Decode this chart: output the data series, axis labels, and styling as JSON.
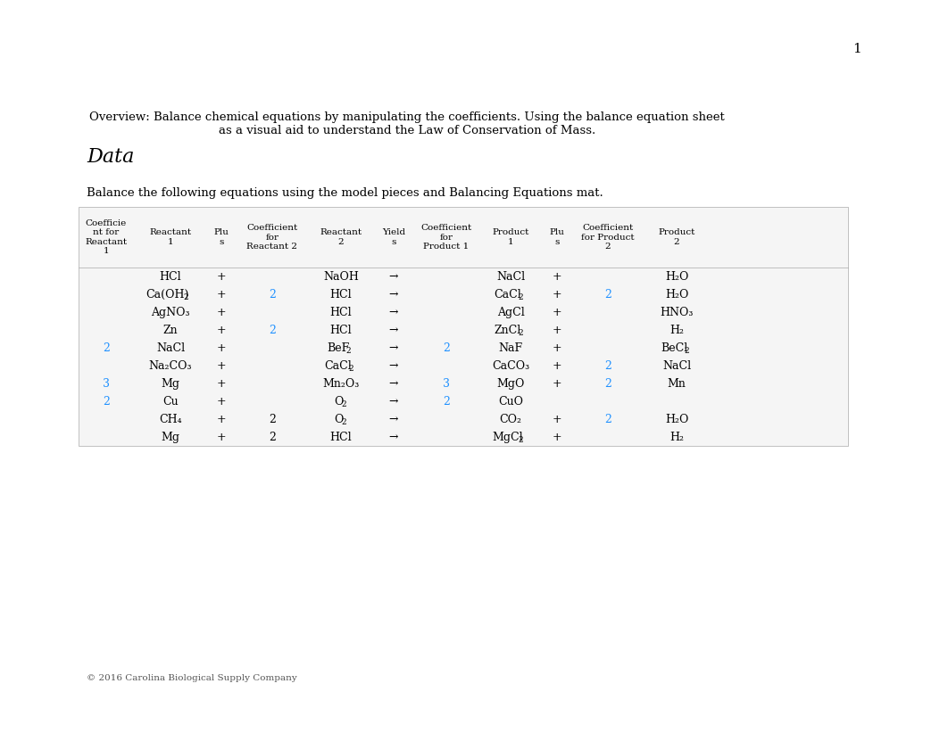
{
  "page_number": "1",
  "overview_text": "Overview: Balance chemical equations by manipulating the coefficients. Using the balance equation sheet\nas a visual aid to understand the Law of Conservation of Mass.",
  "section_title": "Data",
  "instruction_text": "Balance the following equations using the model pieces and Balancing Equations mat.",
  "footer_text": "© 2016 Carolina Biological Supply Company",
  "bg_color": "#ffffff",
  "table_bg": "#f0f0f0",
  "blue_color": "#1e90ff",
  "black_color": "#000000",
  "gray_color": "#888888",
  "col_headers": [
    "Coefficie\nnt for\nReactant\n1",
    "Reactant\n1",
    "Plu\ns",
    "Coefficient\nfor\nReactant 2",
    "Reactant\n2",
    "Yield\ns",
    "Coefficient\nfor\nProduct 1",
    "Product\n1",
    "Plu\ns",
    "Coefficient\nfor Product\n2",
    "Product\n2"
  ],
  "rows": [
    {
      "coeff_r1": "",
      "r1": "HCl",
      "r1_sub": null,
      "plus1": "+",
      "coeff_r2": "",
      "r2": "NaOH",
      "r2_sub": null,
      "yields": "→",
      "coeff_p1": "",
      "p1": "NaCl",
      "p1_sub": null,
      "plus2": "+",
      "coeff_p2": "",
      "p2": "H₂O",
      "p2_sub": null
    },
    {
      "coeff_r1": "",
      "r1": "Ca(OH)",
      "r1_sub": "2",
      "plus1": "+",
      "coeff_r2": "2",
      "r2": "HCl",
      "r2_sub": null,
      "yields": "→",
      "coeff_p1": "",
      "p1": "CaCl",
      "p1_sub": "2",
      "plus2": "+",
      "coeff_p2": "2",
      "p2": "H₂O",
      "p2_sub": null
    },
    {
      "coeff_r1": "",
      "r1": "AgNO₃",
      "r1_sub": null,
      "plus1": "+",
      "coeff_r2": "",
      "r2": "HCl",
      "r2_sub": null,
      "yields": "→",
      "coeff_p1": "",
      "p1": "AgCl",
      "p1_sub": null,
      "plus2": "+",
      "coeff_p2": "",
      "p2": "HNO₃",
      "p2_sub": null
    },
    {
      "coeff_r1": "",
      "r1": "Zn",
      "r1_sub": null,
      "plus1": "+",
      "coeff_r2": "2",
      "r2": "HCl",
      "r2_sub": null,
      "yields": "→",
      "coeff_p1": "",
      "p1": "ZnCl",
      "p1_sub": "2",
      "plus2": "+",
      "coeff_p2": "",
      "p2": "H₂",
      "p2_sub": null
    },
    {
      "coeff_r1": "2",
      "r1": "NaCl",
      "r1_sub": null,
      "plus1": "+",
      "coeff_r2": "",
      "r2": "BeF",
      "r2_sub": "2",
      "yields": "→",
      "coeff_p1": "2",
      "p1": "NaF",
      "p1_sub": null,
      "plus2": "+",
      "coeff_p2": "",
      "p2": "BeCl",
      "p2_sub": "2"
    },
    {
      "coeff_r1": "",
      "r1": "Na₂CO₃",
      "r1_sub": null,
      "plus1": "+",
      "coeff_r2": "",
      "r2": "CaCl",
      "r2_sub": "2",
      "yields": "→",
      "coeff_p1": "",
      "p1": "CaCO₃",
      "p1_sub": null,
      "plus2": "+",
      "coeff_p2": "2",
      "p2": "NaCl",
      "p2_sub": null
    },
    {
      "coeff_r1": "3",
      "r1": "Mg",
      "r1_sub": null,
      "plus1": "+",
      "coeff_r2": "",
      "r2": "Mn₂O₃",
      "r2_sub": null,
      "yields": "→",
      "coeff_p1": "3",
      "p1": "MgO",
      "p1_sub": null,
      "plus2": "+",
      "coeff_p2": "2",
      "p2": "Mn",
      "p2_sub": null
    },
    {
      "coeff_r1": "2",
      "r1": "Cu",
      "r1_sub": null,
      "plus1": "+",
      "coeff_r2": "",
      "r2": "O",
      "r2_sub": "2",
      "yields": "→",
      "coeff_p1": "2",
      "p1": "CuO",
      "p1_sub": null,
      "plus2": "",
      "coeff_p2": "",
      "p2": "",
      "p2_sub": null
    },
    {
      "coeff_r1": "",
      "r1": "CH₄",
      "r1_sub": null,
      "plus1": "+",
      "coeff_r2": "2",
      "r2": "O",
      "r2_sub": "2",
      "yields": "→",
      "coeff_p1": "",
      "p1": "CO₂",
      "p1_sub": null,
      "plus2": "+",
      "coeff_p2": "2",
      "p2": "H₂O",
      "p2_sub": null
    },
    {
      "coeff_r1": "",
      "r1": "Mg",
      "r1_sub": null,
      "plus1": "+",
      "coeff_r2": "2",
      "r2": "HCl",
      "r2_sub": null,
      "yields": "→",
      "coeff_p1": "",
      "p1": "MgCl",
      "p1_sub": "2",
      "plus2": "+",
      "coeff_p2": "",
      "p2": "H₂",
      "p2_sub": null
    }
  ]
}
